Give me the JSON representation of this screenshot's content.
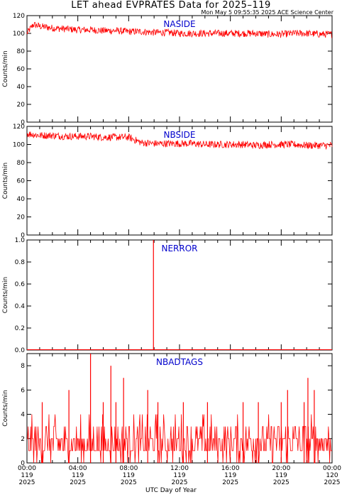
{
  "title": "LET ahead EVPRATES Data for 2025–119",
  "timestamp": "Mon May  5 09:55:35 2025 ACE Science Center",
  "xlabel": "UTC Day of Year",
  "colors": {
    "data": "#ff0000",
    "label": "#0000cc",
    "axis": "#000000"
  },
  "chart_data": [
    {
      "type": "line",
      "name": "NASIDE",
      "ylabel": "Counts/min",
      "ylim": [
        0,
        120
      ],
      "yticks": [
        0,
        20,
        40,
        60,
        80,
        100,
        120
      ],
      "xlim_hours": [
        0,
        24
      ],
      "series": [
        {
          "x_hours": [
            0,
            0.5,
            1,
            2,
            3,
            4,
            5,
            6,
            7,
            8,
            9,
            10,
            11,
            12,
            13,
            14,
            15,
            16,
            17,
            18,
            19,
            20,
            21,
            22,
            23,
            24
          ],
          "y": [
            100,
            110,
            108,
            106,
            105,
            104,
            104,
            103,
            103,
            102,
            102,
            101,
            101,
            100,
            100,
            100,
            100,
            100,
            100,
            100,
            99,
            99,
            100,
            100,
            99,
            99
          ],
          "noise": 4
        }
      ]
    },
    {
      "type": "line",
      "name": "NBSIDE",
      "ylabel": "Counts/min",
      "ylim": [
        0,
        120
      ],
      "yticks": [
        0,
        20,
        40,
        60,
        80,
        100,
        120
      ],
      "xlim_hours": [
        0,
        24
      ],
      "series": [
        {
          "x_hours": [
            0,
            1,
            2,
            3,
            4,
            5,
            6,
            7,
            8,
            9,
            10,
            11,
            12,
            13,
            14,
            15,
            16,
            17,
            18,
            19,
            20,
            21,
            22,
            23,
            24
          ],
          "y": [
            112,
            110,
            110,
            109,
            109,
            109,
            108,
            108,
            108,
            102,
            101,
            101,
            101,
            101,
            100,
            100,
            100,
            100,
            99,
            100,
            100,
            100,
            99,
            99,
            99
          ],
          "noise": 4
        }
      ]
    },
    {
      "type": "line",
      "name": "NERROR",
      "ylabel": "Counts/min",
      "ylim": [
        0,
        1
      ],
      "yticks": [
        0.0,
        0.2,
        0.4,
        0.6,
        0.8,
        1.0
      ],
      "ytick_labels": [
        "0.0",
        "0.2",
        "0.4",
        "0.6",
        "0.8",
        "1.0"
      ],
      "xlim_hours": [
        0,
        24
      ],
      "spikes": [
        {
          "x_hours": 9.95,
          "y": 1
        }
      ]
    },
    {
      "type": "line",
      "name": "NBADTAGS",
      "ylabel": "Counts/min",
      "ylim": [
        0,
        9
      ],
      "yticks": [
        0,
        2,
        4,
        6,
        8
      ],
      "xlim_hours": [
        0,
        24
      ],
      "baseline_levels": [
        0,
        1,
        2,
        3,
        4
      ],
      "spikes": [
        {
          "x_hours": 1.2,
          "y": 5
        },
        {
          "x_hours": 3.3,
          "y": 6
        },
        {
          "x_hours": 5.0,
          "y": 9
        },
        {
          "x_hours": 6.0,
          "y": 5
        },
        {
          "x_hours": 6.6,
          "y": 8
        },
        {
          "x_hours": 7.0,
          "y": 5
        },
        {
          "x_hours": 7.6,
          "y": 7
        },
        {
          "x_hours": 9.5,
          "y": 6
        },
        {
          "x_hours": 10.3,
          "y": 5
        },
        {
          "x_hours": 12.3,
          "y": 5
        },
        {
          "x_hours": 14.2,
          "y": 5
        },
        {
          "x_hours": 17.0,
          "y": 5
        },
        {
          "x_hours": 18.2,
          "y": 5
        },
        {
          "x_hours": 20.0,
          "y": 5
        },
        {
          "x_hours": 20.5,
          "y": 6
        },
        {
          "x_hours": 21.8,
          "y": 5
        },
        {
          "x_hours": 22.1,
          "y": 7
        },
        {
          "x_hours": 22.6,
          "y": 6
        }
      ]
    }
  ],
  "xticks": [
    {
      "hours": 0,
      "time": "00:00",
      "doy": "119",
      "year": "2025"
    },
    {
      "hours": 4,
      "time": "04:00",
      "doy": "119",
      "year": "2025"
    },
    {
      "hours": 8,
      "time": "08:00",
      "doy": "119",
      "year": "2025"
    },
    {
      "hours": 12,
      "time": "12:00",
      "doy": "119",
      "year": "2025"
    },
    {
      "hours": 16,
      "time": "16:00",
      "doy": "119",
      "year": "2025"
    },
    {
      "hours": 20,
      "time": "20:00",
      "doy": "119",
      "year": "2025"
    },
    {
      "hours": 24,
      "time": "00:00",
      "doy": "120",
      "year": "2025"
    }
  ]
}
